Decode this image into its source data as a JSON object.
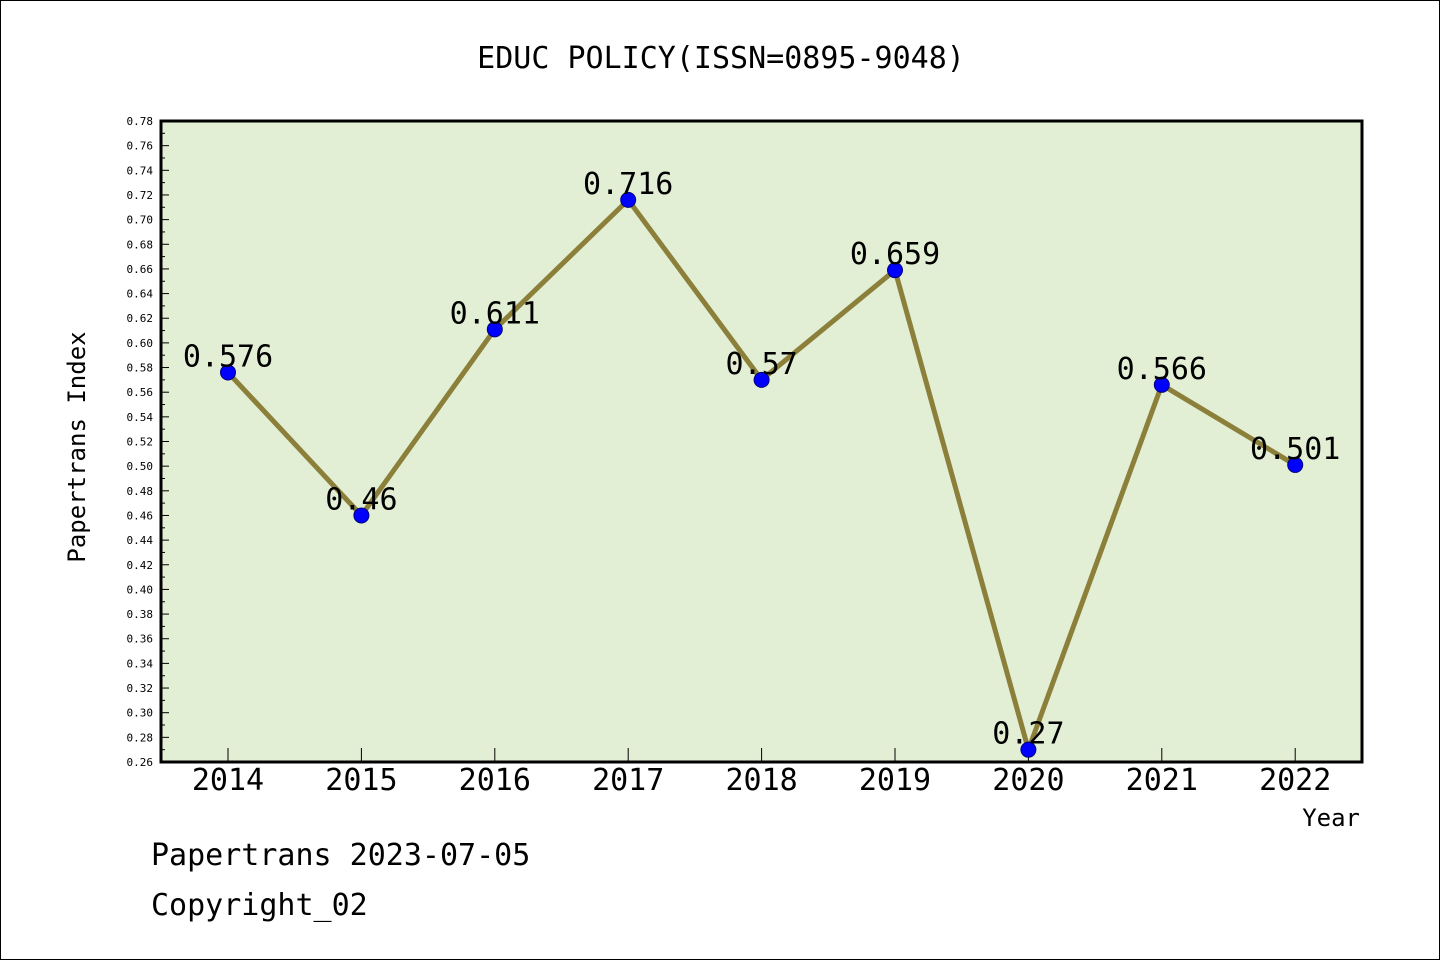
{
  "chart_data": {
    "type": "line",
    "title": "EDUC POLICY(ISSN=0895-9048)",
    "xlabel": "Year",
    "ylabel": "Papertrans Index",
    "categories": [
      "2014",
      "2015",
      "2016",
      "2017",
      "2018",
      "2019",
      "2020",
      "2021",
      "2022"
    ],
    "values": [
      0.576,
      0.46,
      0.611,
      0.716,
      0.57,
      0.659,
      0.27,
      0.566,
      0.501
    ],
    "data_labels": [
      "0.576",
      "0.46",
      "0.611",
      "0.716",
      "0.57",
      "0.659",
      "0.27",
      "0.566",
      "0.501"
    ],
    "ylim": [
      0.26,
      0.78
    ],
    "ytick_step": 0.02,
    "yticks": [
      "0.26",
      "0.28",
      "0.30",
      "0.32",
      "0.34",
      "0.36",
      "0.38",
      "0.40",
      "0.42",
      "0.44",
      "0.46",
      "0.48",
      "0.50",
      "0.52",
      "0.54",
      "0.56",
      "0.58",
      "0.60",
      "0.62",
      "0.64",
      "0.66",
      "0.68",
      "0.70",
      "0.72",
      "0.74",
      "0.76",
      "0.78"
    ],
    "grid": false,
    "colors": {
      "plot_background": "#e2efd5",
      "line": "#8b7f3a",
      "marker": "#0000ff"
    }
  },
  "footer": {
    "line1": "Papertrans 2023-07-05",
    "line2": "Copyright_02"
  }
}
